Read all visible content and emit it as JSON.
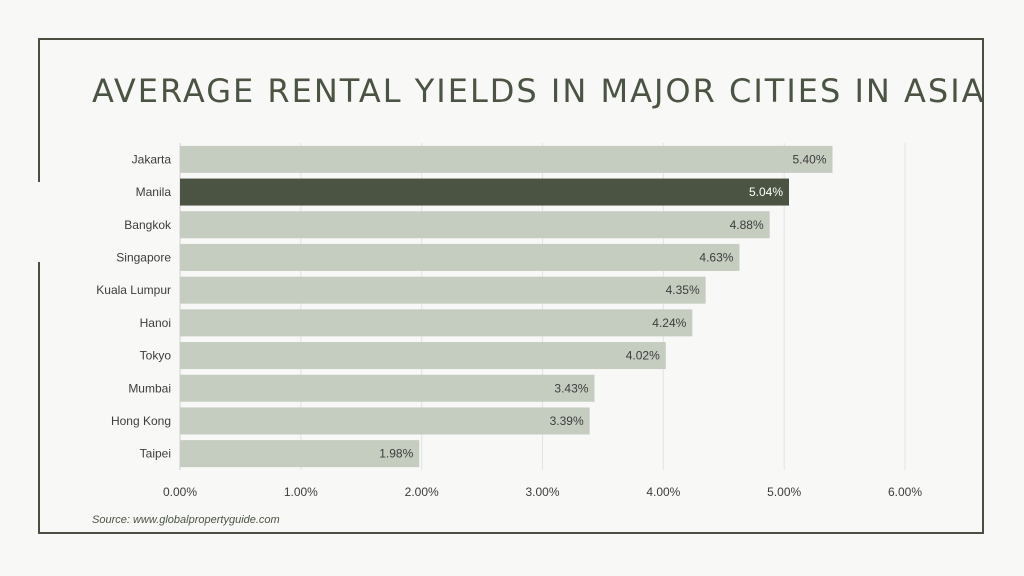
{
  "title": "AVERAGE RENTAL YIELDS IN MAJOR CITIES IN ASIA",
  "source": "Source: www.globalpropertyguide.com",
  "colors": {
    "bar": "#c5ccc0",
    "highlight": "#4b5442",
    "grid": "#e3e3e0",
    "text": "#3d3d3d"
  },
  "chart_data": {
    "type": "bar",
    "orientation": "horizontal",
    "categories": [
      "Jakarta",
      "Manila",
      "Bangkok",
      "Singapore",
      "Kuala Lumpur",
      "Hanoi",
      "Tokyo",
      "Mumbai",
      "Hong Kong",
      "Taipei"
    ],
    "values": [
      5.4,
      5.04,
      4.88,
      4.63,
      4.35,
      4.24,
      4.02,
      3.43,
      3.39,
      1.98
    ],
    "data_labels": [
      "5.40%",
      "5.04%",
      "4.88%",
      "4.63%",
      "4.35%",
      "4.24%",
      "4.02%",
      "3.43%",
      "3.39%",
      "1.98%"
    ],
    "highlight": "Manila",
    "xlim": [
      0,
      6
    ],
    "xticks": [
      0,
      1,
      2,
      3,
      4,
      5,
      6
    ],
    "xtick_labels": [
      "0.00%",
      "1.00%",
      "2.00%",
      "3.00%",
      "4.00%",
      "5.00%",
      "6.00%"
    ],
    "grid": true,
    "xlabel": "",
    "ylabel": ""
  }
}
